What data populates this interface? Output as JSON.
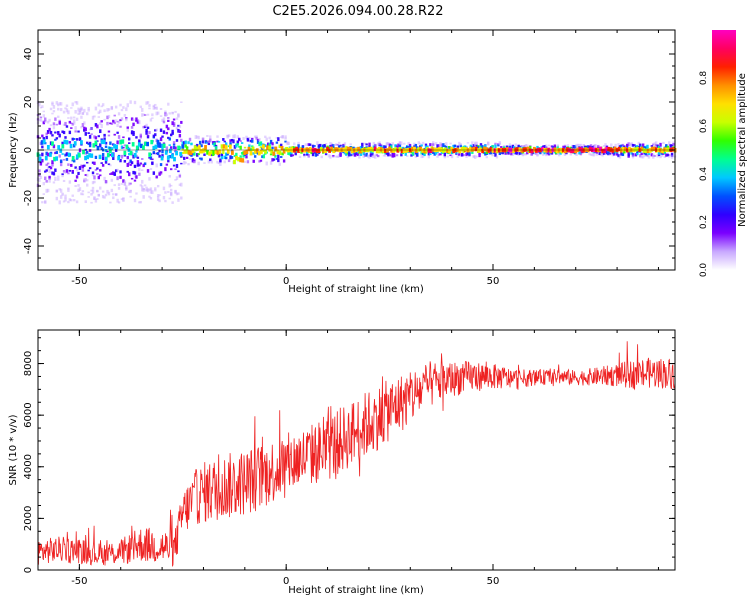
{
  "title": "C2E5.2026.094.00.28.R22",
  "chart_data": [
    {
      "type": "heatmap",
      "id": "spectrogram",
      "xlabel": "Height of straight line (km)",
      "ylabel": "Frequency (Hz)",
      "xlim": [
        -60,
        94
      ],
      "ylim": [
        -50,
        50
      ],
      "xticks": [
        -50,
        0,
        50
      ],
      "yticks": [
        -40,
        -20,
        0,
        20,
        40
      ],
      "xtick_labels": [
        "-50",
        "0",
        "50"
      ],
      "ytick_labels": [
        "-40",
        "-20",
        "0",
        "20",
        "40"
      ],
      "colorbar": {
        "label": "Normalized spectral amplitude",
        "range": [
          0,
          1
        ],
        "ticks": [
          0.0,
          0.2,
          0.4,
          0.6,
          0.8
        ],
        "tick_labels": [
          "0.0",
          "0.2",
          "0.4",
          "0.6",
          "0.8"
        ],
        "colors": [
          "#ffffff",
          "#c8a8ff",
          "#7a00ff",
          "#2f00ff",
          "#0050ff",
          "#00c8ff",
          "#00ff90",
          "#30ff00",
          "#c8ff00",
          "#ffe000",
          "#ff9000",
          "#ff2000",
          "#ff0060",
          "#ff00c0"
        ]
      },
      "centre_line_hz": 0,
      "tracks": [
        {
          "x_range": [
            -60,
            -25
          ],
          "spread_hz": [
            -22,
            20
          ],
          "peak_amplitude": 0.45
        },
        {
          "x_range": [
            -25,
            0
          ],
          "spread_hz": [
            -6,
            6
          ],
          "peak_amplitude": 0.75
        },
        {
          "x_range": [
            0,
            52
          ],
          "spread_hz": [
            -3,
            3
          ],
          "peak_amplitude": 0.85
        },
        {
          "x_range": [
            52,
            80
          ],
          "spread_hz": [
            -2,
            2
          ],
          "peak_amplitude": 0.95
        },
        {
          "x_range": [
            80,
            94
          ],
          "spread_hz": [
            -3,
            3
          ],
          "peak_amplitude": 0.8
        }
      ]
    },
    {
      "type": "line",
      "id": "snr",
      "xlabel": "Height of straight line (km)",
      "ylabel": "SNR (10 * v/v)",
      "xlim": [
        -60,
        94
      ],
      "ylim": [
        0,
        9300
      ],
      "xticks": [
        -50,
        0,
        50
      ],
      "yticks": [
        0,
        2000,
        4000,
        6000,
        8000
      ],
      "xtick_labels": [
        "-50",
        "0",
        "50"
      ],
      "ytick_labels": [
        "0",
        "2000",
        "4000",
        "6000",
        "8000"
      ],
      "series": [
        {
          "name": "SNR",
          "color": "#ee2222",
          "x": [
            -60,
            -55,
            -50,
            -45,
            -40,
            -35,
            -30,
            -27,
            -25,
            -22,
            -20,
            -15,
            -10,
            -5,
            0,
            5,
            10,
            15,
            20,
            25,
            30,
            35,
            40,
            45,
            50,
            55,
            60,
            65,
            70,
            75,
            80,
            85,
            90,
            94
          ],
          "y": [
            700,
            800,
            750,
            600,
            700,
            1000,
            900,
            800,
            2200,
            2800,
            3000,
            3200,
            3400,
            3700,
            4100,
            4400,
            4700,
            5200,
            5700,
            6200,
            6700,
            7200,
            7400,
            7500,
            7500,
            7400,
            7450,
            7500,
            7450,
            7500,
            7550,
            7600,
            7650,
            7600
          ],
          "noise_amplitude": [
            500,
            500,
            500,
            450,
            500,
            700,
            700,
            700,
            900,
            1100,
            1200,
            1300,
            1300,
            1300,
            1200,
            1200,
            1300,
            1300,
            1300,
            1200,
            1100,
            900,
            700,
            600,
            500,
            400,
            300,
            300,
            300,
            350,
            450,
            600,
            600,
            600
          ]
        }
      ]
    }
  ]
}
